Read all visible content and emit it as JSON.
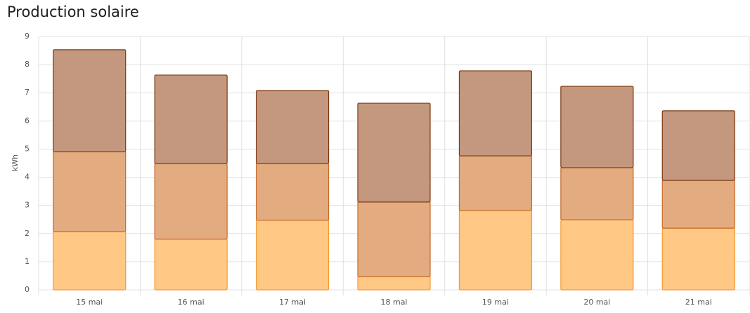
{
  "chart_data": {
    "type": "stacked_bar",
    "title": "Production solaire",
    "y_label": "kWh",
    "categories": [
      "15 mai",
      "16 mai",
      "17 mai",
      "18 mai",
      "19 mai",
      "20 mai",
      "21 mai"
    ],
    "series": [
      {
        "color": "#ffc885",
        "values": [
          2.07,
          1.8,
          2.47,
          0.47,
          2.82,
          2.49,
          2.19
        ]
      },
      {
        "color": "#e2ac80",
        "values": [
          2.84,
          2.69,
          2.02,
          2.65,
          1.94,
          1.85,
          1.7
        ]
      },
      {
        "color": "#c4987e",
        "values": [
          3.62,
          3.14,
          2.59,
          3.51,
          3.02,
          2.89,
          2.47
        ]
      }
    ],
    "ylim": [
      0,
      9
    ],
    "yticks": [
      0,
      1,
      2,
      3,
      4,
      5,
      6,
      7,
      8,
      9
    ],
    "grid": true
  }
}
